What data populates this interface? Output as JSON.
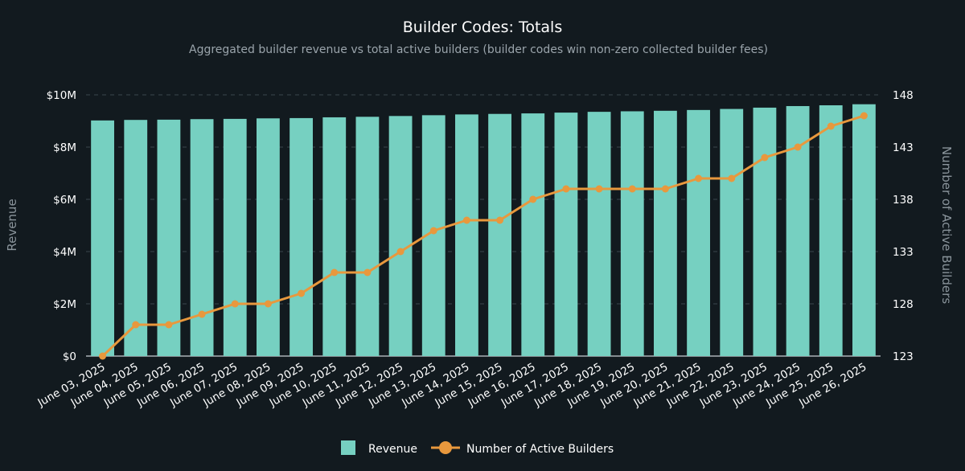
{
  "chart_data": {
    "type": "bar",
    "title": "Builder Codes: Totals",
    "subtitle": "Aggregated builder revenue vs total active builders (builder codes win non-zero collected builder fees)",
    "categories": [
      "June 03, 2025",
      "June 04, 2025",
      "June 05, 2025",
      "June 06, 2025",
      "June 07, 2025",
      "June 08, 2025",
      "June 09, 2025",
      "June 10, 2025",
      "June 11, 2025",
      "June 12, 2025",
      "June 13, 2025",
      "June 14, 2025",
      "June 15, 2025",
      "June 16, 2025",
      "June 17, 2025",
      "June 18, 2025",
      "June 19, 2025",
      "June 20, 2025",
      "June 21, 2025",
      "June 22, 2025",
      "June 23, 2025",
      "June 24, 2025",
      "June 25, 2025",
      "June 26, 2025"
    ],
    "series": [
      {
        "name": "Revenue",
        "type": "bar",
        "axis": "left",
        "color": "#76d0c1",
        "values": [
          9020000,
          9040000,
          9050000,
          9070000,
          9080000,
          9100000,
          9110000,
          9140000,
          9160000,
          9190000,
          9220000,
          9250000,
          9270000,
          9290000,
          9320000,
          9350000,
          9370000,
          9390000,
          9420000,
          9460000,
          9510000,
          9570000,
          9600000,
          9640000
        ]
      },
      {
        "name": "Number of Active Builders",
        "type": "line",
        "axis": "right",
        "color": "#e8983d",
        "values": [
          123,
          126,
          126,
          127,
          128,
          128,
          129,
          131,
          131,
          133,
          135,
          136,
          136,
          138,
          139,
          139,
          139,
          139,
          140,
          140,
          142,
          143,
          145,
          146
        ]
      }
    ],
    "ylabel": "Revenue",
    "ylabel_right": "Number of Active Builders",
    "ylim": [
      0,
      10000000
    ],
    "ylim_right": [
      123,
      148
    ],
    "yticks": [
      "$0",
      "$2M",
      "$4M",
      "$6M",
      "$8M",
      "$10M"
    ],
    "yticks_right": [
      "123",
      "128",
      "133",
      "138",
      "143",
      "148"
    ],
    "grid": true,
    "legend_position": "bottom-center"
  }
}
